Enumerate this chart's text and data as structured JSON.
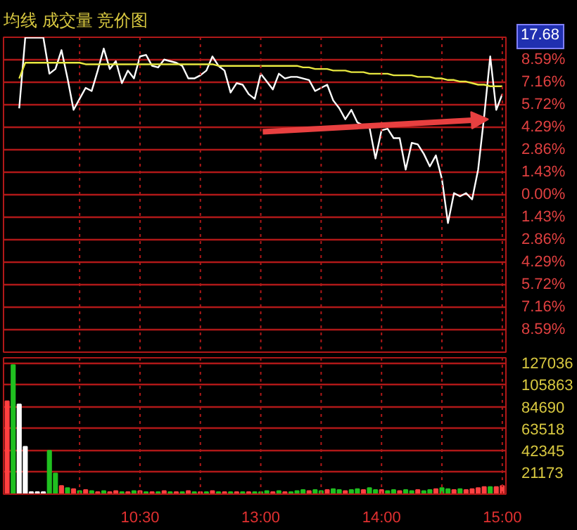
{
  "chart_data": [
    {
      "type": "line",
      "title": "均线 成交量 竞价图",
      "annotations": [
        "17.68"
      ],
      "ylim": [
        -10.02,
        10.02
      ],
      "categories": [
        null,
        null,
        null,
        null,
        null,
        null,
        null,
        null,
        null,
        null,
        null,
        null,
        null,
        null,
        null,
        null,
        null,
        null,
        null,
        null,
        null,
        null,
        null,
        null,
        null,
        null,
        null,
        null,
        null,
        null,
        null,
        null,
        null,
        null,
        null,
        null,
        null,
        null,
        null,
        null,
        null,
        null,
        null,
        null,
        null,
        null,
        null,
        null,
        null,
        null,
        null,
        null,
        null,
        null,
        null,
        null,
        null,
        null,
        null,
        null,
        null,
        null,
        null,
        null,
        null,
        null,
        null,
        null,
        null,
        null,
        null,
        null,
        null,
        null,
        null,
        null,
        null,
        null,
        null,
        null,
        null,
        null,
        null
      ],
      "yticks": [
        {
          "value": 8.59,
          "label": "8.59%"
        },
        {
          "value": 7.16,
          "label": "7.16%"
        },
        {
          "value": 5.72,
          "label": "5.72%"
        },
        {
          "value": 4.29,
          "label": "4.29%"
        },
        {
          "value": 2.86,
          "label": "2.86%"
        },
        {
          "value": 1.43,
          "label": "1.43%"
        },
        {
          "value": 0,
          "label": "0.00%"
        },
        {
          "value": -1.43,
          "label": "1.43%"
        },
        {
          "value": -2.86,
          "label": "2.86%"
        },
        {
          "value": -4.29,
          "label": "4.29%"
        },
        {
          "value": -5.72,
          "label": "5.72%"
        },
        {
          "value": -7.16,
          "label": "7.16%"
        },
        {
          "value": -8.59,
          "label": "8.59%"
        }
      ],
      "grid": true,
      "tick_labels": "y",
      "series": [
        {
          "color": "#ffffff",
          "values": [
            null,
            null,
            5.5,
            10.0,
            10.0,
            10.0,
            10.0,
            7.7,
            8.0,
            9.2,
            7.4,
            5.4,
            6.1,
            6.8,
            6.6,
            7.9,
            9.3,
            8.0,
            8.5,
            7.1,
            7.9,
            7.4,
            8.8,
            8.9,
            8.2,
            8.1,
            8.6,
            8.5,
            8.4,
            8.2,
            7.4,
            7.4,
            7.6,
            7.9,
            8.8,
            8.2,
            7.9,
            6.5,
            7.1,
            7.0,
            6.4,
            6.1,
            7.7,
            7.2,
            6.7,
            7.7,
            7.4,
            7.5,
            7.5,
            7.4,
            7.3,
            6.6,
            6.8,
            7.0,
            6.0,
            5.5,
            4.8,
            5.4,
            4.6,
            4.4,
            4.3,
            2.3,
            4.1,
            4.2,
            3.6,
            3.6,
            1.6,
            3.3,
            3.2,
            2.6,
            1.8,
            2.5,
            1.0,
            -1.8,
            0.1,
            -0.1,
            0.1,
            -0.3,
            1.6,
            5.0,
            8.8,
            5.4,
            6.4
          ]
        },
        {
          "color": "#e8e840",
          "values": [
            null,
            null,
            7.4,
            8.4,
            8.4,
            8.4,
            8.4,
            8.4,
            8.4,
            8.4,
            8.4,
            8.4,
            8.4,
            8.3,
            8.3,
            8.3,
            8.3,
            8.3,
            8.3,
            8.3,
            8.3,
            8.3,
            8.3,
            8.3,
            8.3,
            8.3,
            8.3,
            8.3,
            8.3,
            8.3,
            8.3,
            8.3,
            8.3,
            8.3,
            8.3,
            8.2,
            8.2,
            8.2,
            8.2,
            8.2,
            8.2,
            8.2,
            8.2,
            8.2,
            8.2,
            8.2,
            8.2,
            8.2,
            8.2,
            8.1,
            8.1,
            8.0,
            8.0,
            8.0,
            7.9,
            7.9,
            7.9,
            7.8,
            7.8,
            7.8,
            7.7,
            7.7,
            7.7,
            7.7,
            7.6,
            7.6,
            7.6,
            7.6,
            7.5,
            7.5,
            7.5,
            7.4,
            7.4,
            7.3,
            7.3,
            7.2,
            7.2,
            7.1,
            7.0,
            7.0,
            6.9,
            6.9,
            6.9
          ]
        }
      ]
    },
    {
      "type": "bar",
      "ylim": [
        0,
        132000
      ],
      "categories": [
        null,
        null,
        null,
        null,
        null,
        null,
        null,
        null,
        null,
        null,
        null,
        null,
        null,
        null,
        null,
        null,
        null,
        null,
        null,
        null,
        null,
        null,
        "10:30",
        null,
        null,
        null,
        null,
        null,
        null,
        null,
        null,
        null,
        null,
        null,
        null,
        null,
        null,
        null,
        null,
        null,
        null,
        null,
        "13:00",
        null,
        null,
        null,
        null,
        null,
        null,
        null,
        null,
        null,
        null,
        null,
        null,
        null,
        null,
        null,
        null,
        null,
        null,
        null,
        "14:00",
        null,
        null,
        null,
        null,
        null,
        null,
        null,
        null,
        null,
        null,
        null,
        null,
        null,
        null,
        null,
        null,
        null,
        null,
        null,
        "15:00"
      ],
      "yticks": [
        21173,
        42345,
        63518,
        84690,
        105863,
        127036
      ],
      "grid": true,
      "values": [
        90000,
        125000,
        87000,
        46000,
        2000,
        2000,
        2000,
        42000,
        20000,
        8000,
        6000,
        5000,
        3000,
        4000,
        3000,
        2000,
        3000,
        2000,
        3000,
        2000,
        2000,
        3000,
        3000,
        2000,
        2000,
        2000,
        3000,
        2000,
        2000,
        2000,
        3000,
        2000,
        2000,
        2000,
        3000,
        2000,
        2000,
        2000,
        2000,
        2000,
        2000,
        2000,
        2000,
        3000,
        2000,
        3000,
        2000,
        2000,
        3000,
        4000,
        3000,
        4000,
        3000,
        4000,
        5000,
        4000,
        3000,
        4000,
        5000,
        4000,
        6000,
        4000,
        4000,
        3000,
        4000,
        3000,
        4000,
        3000,
        4000,
        3000,
        4000,
        5000,
        6000,
        5000,
        4000,
        5000,
        4000,
        5000,
        6000,
        7000,
        7000,
        7000,
        8000
      ],
      "colors": [
        "#ff4040",
        "#20c020",
        "#ffffff",
        "#ffffff",
        "#ffffff",
        "#ffffff",
        "#ffffff",
        "#20c020",
        "#20c020",
        "#ff4040",
        "#20c020",
        "#ff4040",
        "#20c020",
        "#ff4040",
        "#20c020",
        "#ff4040",
        "#20c020",
        "#ff4040",
        "#ff4040",
        "#20c020",
        "#ff4040",
        "#20c020",
        "#ff4040",
        "#20c020",
        "#ff4040",
        "#20c020",
        "#ff4040",
        "#20c020",
        "#ff4040",
        "#20c020",
        "#ff4040",
        "#20c020",
        "#ff4040",
        "#20c020",
        "#ff4040",
        "#20c020",
        "#ff4040",
        "#20c020",
        "#ff4040",
        "#20c020",
        "#ff4040",
        "#20c020",
        "#20c020",
        "#20c020",
        "#ff4040",
        "#20c020",
        "#ff4040",
        "#20c020",
        "#20c020",
        "#20c020",
        "#ff4040",
        "#20c020",
        "#20c020",
        "#ff4040",
        "#20c020",
        "#20c020",
        "#ff4040",
        "#20c020",
        "#20c020",
        "#ff4040",
        "#20c020",
        "#20c020",
        "#ff4040",
        "#20c020",
        "#20c020",
        "#ff4040",
        "#20c020",
        "#20c020",
        "#ff4040",
        "#20c020",
        "#20c020",
        "#ff4040",
        "#20c020",
        "#20c020",
        "#ff4040",
        "#20c020",
        "#ff4040",
        "#ff4040",
        "#ff4040",
        "#ff4040",
        "#20c020",
        "#ff4040",
        "#ff4040"
      ]
    }
  ]
}
